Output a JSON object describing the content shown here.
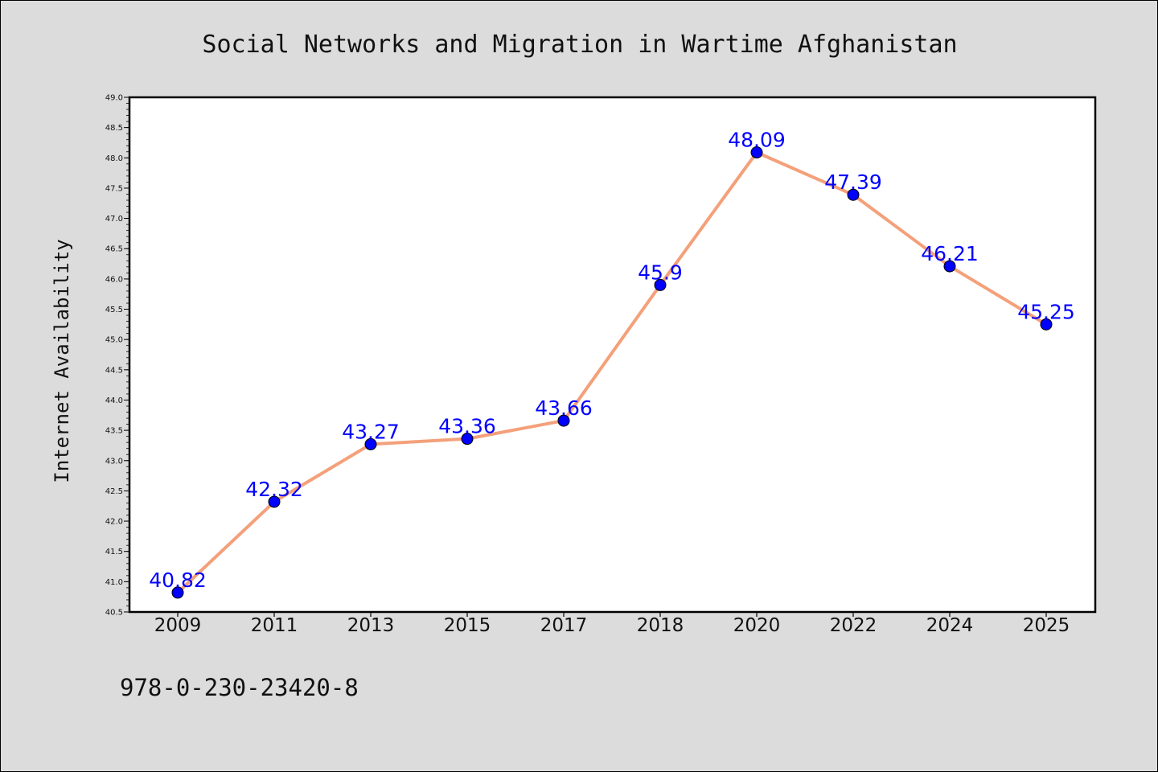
{
  "chart_data": {
    "type": "line",
    "title": "Social Networks and Migration in Wartime Afghanistan",
    "xlabel": "",
    "ylabel": "Internet Availability",
    "categories": [
      "2009",
      "2011",
      "2013",
      "2015",
      "2017",
      "2018",
      "2020",
      "2022",
      "2024",
      "2025"
    ],
    "series": [
      {
        "values": [
          40.82,
          42.32,
          43.27,
          43.36,
          43.66,
          45.9,
          48.09,
          47.39,
          46.21,
          45.25
        ],
        "labels": [
          "40.82",
          "42.32",
          "43.27",
          "43.36",
          "43.66",
          "45.9",
          "48.09",
          "47.39",
          "46.21",
          "45.25"
        ]
      }
    ],
    "ylim": [
      40.5,
      49.0
    ],
    "yticks": [
      "40.5",
      "41.0",
      "41.5",
      "42.0",
      "42.5",
      "43.0",
      "43.5",
      "44.0",
      "44.5",
      "45.0",
      "45.5",
      "46.0",
      "46.5",
      "47.0",
      "47.5",
      "48.0",
      "48.5",
      "49.0"
    ],
    "grid": false,
    "legend": "none",
    "colors": {
      "line": "#f4a07a",
      "marker": "#0000ff",
      "label": "#0000ff",
      "background": "#dcdcdc",
      "plot_background": "#ffffff"
    }
  },
  "footer": {
    "isbn": "978-0-230-23420-8"
  }
}
